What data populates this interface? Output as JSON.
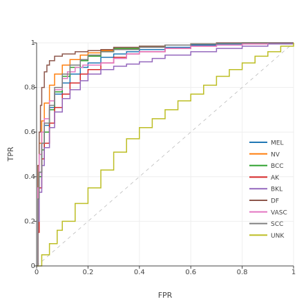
{
  "chart_data": {
    "type": "line",
    "title": "",
    "xlabel": "FPR",
    "ylabel": "TPR",
    "xlim": [
      0,
      1
    ],
    "ylim": [
      0,
      1
    ],
    "xticks": [
      0,
      0.2,
      0.4,
      0.6,
      0.8,
      1
    ],
    "xtick_labels": [
      "0",
      "0.2",
      "0.4",
      "0.6",
      "0.8",
      "1"
    ],
    "yticks": [
      0,
      0.2,
      0.4,
      0.6,
      0.8,
      1
    ],
    "ytick_labels": [
      "0",
      "0.2",
      "0.4",
      "0.6",
      "0.8",
      "1"
    ],
    "grid": true,
    "legend_position": "right",
    "reference_line": {
      "x": [
        0,
        1
      ],
      "y": [
        0,
        1
      ],
      "color": "#bbbbbb",
      "dash": true
    },
    "series": [
      {
        "name": "MEL",
        "color": "#1f77b4",
        "x": [
          0,
          0.005,
          0.01,
          0.02,
          0.03,
          0.05,
          0.07,
          0.1,
          0.13,
          0.17,
          0.2,
          0.25,
          0.3,
          0.35,
          0.4,
          0.5,
          0.6,
          0.7,
          0.8,
          0.9,
          1
        ],
        "y": [
          0,
          0.3,
          0.42,
          0.55,
          0.63,
          0.71,
          0.77,
          0.82,
          0.86,
          0.89,
          0.91,
          0.935,
          0.95,
          0.96,
          0.97,
          0.98,
          0.99,
          0.995,
          0.998,
          1,
          1
        ]
      },
      {
        "name": "NV",
        "color": "#ff7f0e",
        "x": [
          0,
          0.005,
          0.01,
          0.02,
          0.03,
          0.05,
          0.07,
          0.1,
          0.13,
          0.17,
          0.2,
          0.25,
          0.3,
          0.4,
          0.5,
          0.6,
          0.7,
          0.8,
          0.9,
          1
        ],
        "y": [
          0,
          0.45,
          0.55,
          0.65,
          0.73,
          0.81,
          0.86,
          0.9,
          0.925,
          0.945,
          0.955,
          0.965,
          0.975,
          0.985,
          0.99,
          0.995,
          0.998,
          1,
          1,
          1
        ]
      },
      {
        "name": "BCC",
        "color": "#2ca02c",
        "x": [
          0,
          0.005,
          0.01,
          0.02,
          0.03,
          0.05,
          0.07,
          0.1,
          0.13,
          0.17,
          0.2,
          0.25,
          0.3,
          0.4,
          0.5,
          0.6,
          0.7,
          0.8,
          0.9,
          1
        ],
        "y": [
          0,
          0.3,
          0.4,
          0.52,
          0.6,
          0.7,
          0.78,
          0.85,
          0.89,
          0.92,
          0.94,
          0.96,
          0.975,
          0.985,
          0.99,
          0.995,
          0.998,
          1,
          1,
          1
        ]
      },
      {
        "name": "AK",
        "color": "#d62728",
        "x": [
          0,
          0.005,
          0.01,
          0.02,
          0.03,
          0.05,
          0.07,
          0.1,
          0.13,
          0.17,
          0.2,
          0.25,
          0.3,
          0.35,
          0.4,
          0.5,
          0.6,
          0.7,
          0.8,
          0.9,
          1
        ],
        "y": [
          0,
          0.15,
          0.35,
          0.48,
          0.55,
          0.64,
          0.71,
          0.77,
          0.82,
          0.86,
          0.88,
          0.91,
          0.935,
          0.95,
          0.96,
          0.975,
          0.985,
          0.99,
          0.995,
          1,
          1
        ]
      },
      {
        "name": "BKL",
        "color": "#9467bd",
        "x": [
          0,
          0.005,
          0.01,
          0.02,
          0.03,
          0.05,
          0.07,
          0.1,
          0.13,
          0.17,
          0.2,
          0.25,
          0.3,
          0.35,
          0.4,
          0.45,
          0.5,
          0.6,
          0.7,
          0.8,
          0.9,
          1
        ],
        "y": [
          0,
          0.2,
          0.33,
          0.45,
          0.53,
          0.62,
          0.69,
          0.75,
          0.79,
          0.83,
          0.86,
          0.88,
          0.895,
          0.905,
          0.915,
          0.93,
          0.945,
          0.96,
          0.975,
          0.985,
          0.995,
          1
        ]
      },
      {
        "name": "DF",
        "color": "#8c564b",
        "x": [
          0,
          0.005,
          0.01,
          0.015,
          0.02,
          0.03,
          0.04,
          0.05,
          0.07,
          0.1,
          0.15,
          0.2,
          0.25,
          0.3,
          0.4,
          0.5,
          0.6,
          0.7,
          0.8,
          0.9,
          1
        ],
        "y": [
          0,
          0.45,
          0.6,
          0.72,
          0.8,
          0.87,
          0.9,
          0.92,
          0.94,
          0.95,
          0.96,
          0.965,
          0.97,
          0.98,
          0.985,
          0.99,
          0.995,
          1,
          1,
          1,
          1
        ]
      },
      {
        "name": "VASC",
        "color": "#e377c2",
        "x": [
          0,
          0.005,
          0.01,
          0.02,
          0.03,
          0.05,
          0.07,
          0.1,
          0.12,
          0.15,
          0.18,
          0.2,
          0.25,
          0.3,
          0.35,
          0.4,
          0.5,
          0.6,
          0.7,
          0.8,
          0.9,
          1
        ],
        "y": [
          0,
          0.35,
          0.5,
          0.6,
          0.66,
          0.74,
          0.79,
          0.84,
          0.87,
          0.89,
          0.9,
          0.9,
          0.91,
          0.93,
          0.95,
          0.96,
          0.975,
          0.985,
          0.99,
          0.995,
          1,
          1
        ]
      },
      {
        "name": "SCC",
        "color": "#7f7f7f",
        "x": [
          0,
          0.005,
          0.01,
          0.02,
          0.03,
          0.05,
          0.07,
          0.1,
          0.13,
          0.17,
          0.2,
          0.25,
          0.3,
          0.4,
          0.5,
          0.6,
          0.7,
          0.8,
          0.9,
          1
        ],
        "y": [
          0,
          0.3,
          0.42,
          0.55,
          0.64,
          0.72,
          0.8,
          0.86,
          0.9,
          0.925,
          0.945,
          0.96,
          0.97,
          0.98,
          0.99,
          0.995,
          0.998,
          1,
          1,
          1
        ]
      },
      {
        "name": "UNK",
        "color": "#bcbd22",
        "x": [
          0,
          0.02,
          0.05,
          0.08,
          0.1,
          0.15,
          0.2,
          0.25,
          0.3,
          0.35,
          0.4,
          0.45,
          0.5,
          0.55,
          0.6,
          0.65,
          0.7,
          0.75,
          0.8,
          0.85,
          0.9,
          0.95,
          1
        ],
        "y": [
          0,
          0.05,
          0.1,
          0.16,
          0.2,
          0.28,
          0.35,
          0.43,
          0.51,
          0.57,
          0.62,
          0.66,
          0.7,
          0.74,
          0.77,
          0.81,
          0.85,
          0.88,
          0.91,
          0.94,
          0.96,
          0.985,
          1
        ]
      }
    ]
  }
}
